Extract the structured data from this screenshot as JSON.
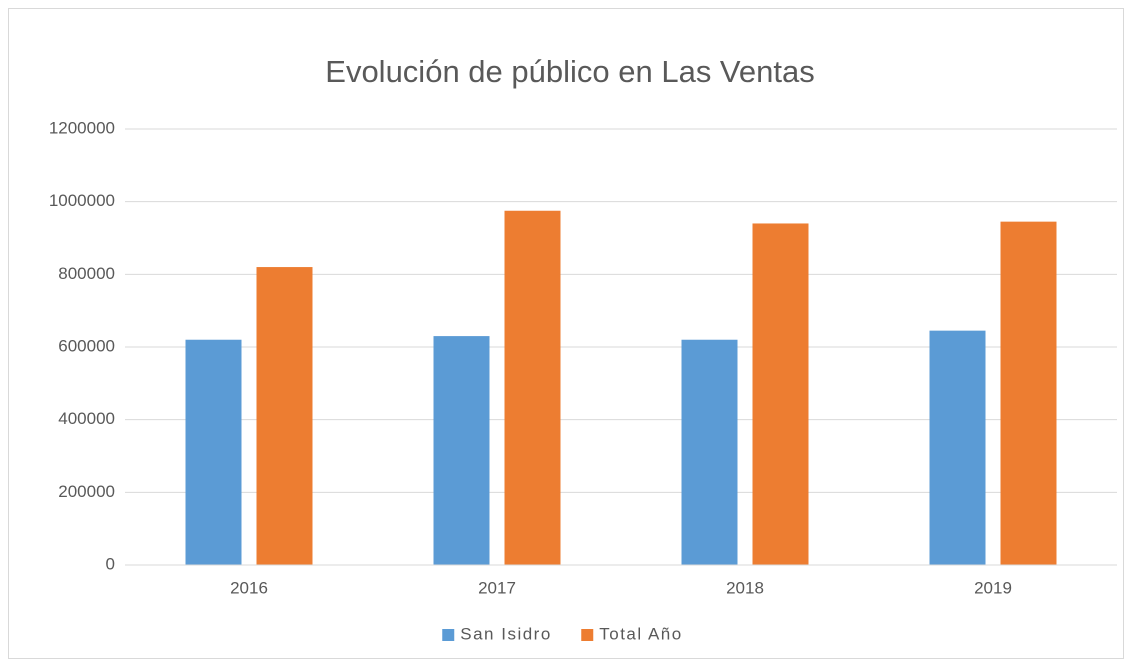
{
  "chart_data": {
    "type": "bar",
    "title": "Evolución de público en Las Ventas",
    "categories": [
      "2016",
      "2017",
      "2018",
      "2019"
    ],
    "series": [
      {
        "name": "San Isidro",
        "color": "#5b9bd5",
        "values": [
          620000,
          630000,
          620000,
          645000
        ]
      },
      {
        "name": "Total Año",
        "color": "#ed7d31",
        "values": [
          820000,
          975000,
          940000,
          945000
        ]
      }
    ],
    "ylim": [
      0,
      1200000
    ],
    "yticks": [
      0,
      200000,
      400000,
      600000,
      800000,
      1000000,
      1200000
    ],
    "grid": true,
    "legend": "bottom"
  }
}
